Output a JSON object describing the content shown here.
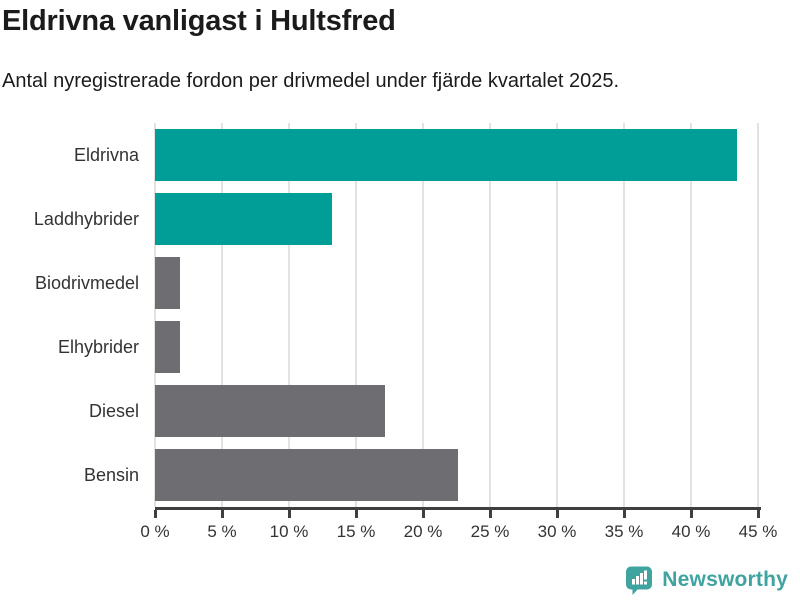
{
  "chart_data": {
    "type": "bar",
    "orientation": "horizontal",
    "title": "Eldrivna vanligast i Hultsfred",
    "subtitle": "Antal nyregistrerade fordon per drivmedel under fjärde kvartalet 2025.",
    "categories": [
      "Eldrivna",
      "Laddhybrider",
      "Biodrivmedel",
      "Elhybrider",
      "Diesel",
      "Bensin"
    ],
    "values": [
      43.4,
      13.2,
      1.9,
      1.9,
      17.2,
      22.6
    ],
    "unit": "%",
    "bar_colors": [
      "#009e96",
      "#009e96",
      "#6e6e72",
      "#6e6e72",
      "#6e6e72",
      "#6e6e72"
    ],
    "xlabel": "",
    "ylabel": "",
    "xlim": [
      0,
      45
    ],
    "x_tick_values": [
      0,
      5,
      10,
      15,
      20,
      25,
      30,
      35,
      40,
      45
    ],
    "x_ticks": [
      "0 %",
      "5 %",
      "10 %",
      "15 %",
      "20 %",
      "25 %",
      "30 %",
      "35 %",
      "40 %",
      "45 %"
    ],
    "grid": "vertical-only",
    "legend": "none",
    "colors": {
      "accent_teal": "#009e96",
      "neutral_gray": "#6e6e72",
      "axis": "#3f3f3f",
      "gridline": "#e2e2e2",
      "text": "#333333"
    }
  },
  "footer": {
    "brand": "Newsworthy",
    "brand_color": "#3fa3a0"
  }
}
